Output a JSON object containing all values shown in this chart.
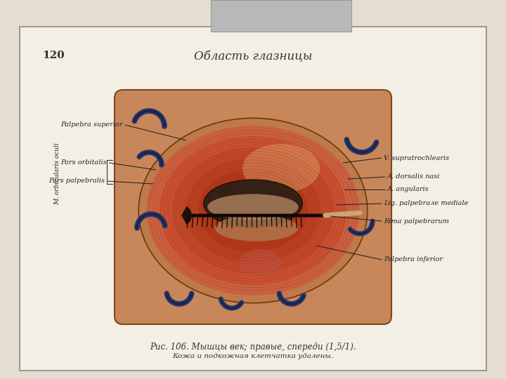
{
  "fig_w": 7.2,
  "fig_h": 5.4,
  "dpi": 100,
  "outer_bg": "#e5ddd0",
  "page_bg": "#f4efe5",
  "page_border": "#888888",
  "tab_color": "#b8b8b8",
  "tab_edge": "#999999",
  "page_number": "120",
  "page_title": "Область глазницы",
  "caption_line1": "Рис. 106. Мышцы век; правые, спереди (1,5/1).",
  "caption_line2": "Кожа и подкожная клетчатка удалены.",
  "skin_outer": "#c8875a",
  "skin_inner": "#bf7a4a",
  "muscle_outer": "#c85030",
  "muscle_mid": "#d06050",
  "muscle_inner": "#b83828",
  "muscle_center": "#a83020",
  "eyelid_dark": "#2a1508",
  "vessel_color": "#2a3868",
  "vessel_dark": "#1a2450",
  "fiber_color": "#a02818",
  "highlight_color": "#dfa870"
}
